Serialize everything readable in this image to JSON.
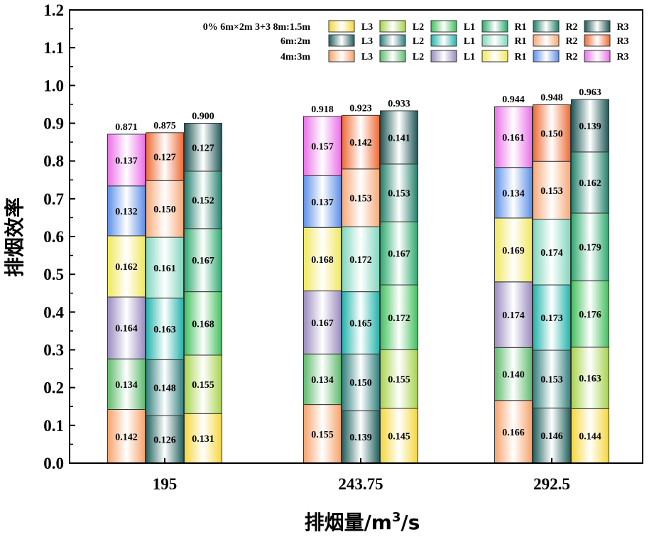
{
  "chart_data": {
    "type": "bar",
    "stacked": true,
    "title": "",
    "xlabel": "排烟量/m³/s",
    "ylabel": "排烟效率",
    "ylim": [
      0,
      1.2
    ],
    "yticks": [
      "0.0",
      "0.1",
      "0.2",
      "0.3",
      "0.4",
      "0.5",
      "0.6",
      "0.7",
      "0.8",
      "0.9",
      "1.0",
      "1.1",
      "1.2"
    ],
    "categories": [
      "195",
      "243.75",
      "292.5"
    ],
    "groups": [
      {
        "name": "4m:3m",
        "segments": [
          {
            "name": "L3",
            "color": "#f7a26a",
            "values": [
              0.142,
              0.155,
              0.166
            ]
          },
          {
            "name": "L2",
            "color": "#5dba6c",
            "values": [
              0.134,
              0.134,
              0.14
            ]
          },
          {
            "name": "L1",
            "color": "#9a8bbf",
            "values": [
              0.164,
              0.167,
              0.174
            ]
          },
          {
            "name": "R1",
            "color": "#efe75a",
            "values": [
              0.162,
              0.168,
              0.169
            ]
          },
          {
            "name": "R2",
            "color": "#5d8fe8",
            "values": [
              0.132,
              0.137,
              0.134
            ]
          },
          {
            "name": "R3",
            "color": "#ea6fe8",
            "values": [
              0.137,
              0.157,
              0.161
            ]
          }
        ],
        "totals": [
          "0.871",
          "0.918",
          "0.944"
        ]
      },
      {
        "name": "6m:2m",
        "segments": [
          {
            "name": "L3",
            "color": "#1f5f5c",
            "values": [
              0.126,
              0.139,
              0.146
            ]
          },
          {
            "name": "L2",
            "color": "#2f7f7c",
            "values": [
              0.148,
              0.15,
              0.153
            ]
          },
          {
            "name": "L1",
            "color": "#1fb3aa",
            "values": [
              0.163,
              0.165,
              0.173
            ]
          },
          {
            "name": "R1",
            "color": "#7fd6bd",
            "values": [
              0.161,
              0.172,
              0.174
            ]
          },
          {
            "name": "R2",
            "color": "#f7a877",
            "values": [
              0.15,
              0.153,
              0.153
            ]
          },
          {
            "name": "R3",
            "color": "#ee6a33",
            "values": [
              0.127,
              0.142,
              0.15
            ]
          }
        ],
        "totals": [
          "0.875",
          "0.923",
          "0.948"
        ]
      },
      {
        "name": "0% 6m×2m 3+3 8m:1.5m",
        "segments": [
          {
            "name": "L3",
            "color": "#f5d63a",
            "values": [
              0.131,
              0.145,
              0.144
            ]
          },
          {
            "name": "L2",
            "color": "#a6d24a",
            "values": [
              0.155,
              0.155,
              0.163
            ]
          },
          {
            "name": "L1",
            "color": "#3fbf5a",
            "values": [
              0.168,
              0.172,
              0.176
            ]
          },
          {
            "name": "R1",
            "color": "#2aa86c",
            "values": [
              0.167,
              0.167,
              0.179
            ]
          },
          {
            "name": "R2",
            "color": "#1f7f6a",
            "values": [
              0.152,
              0.153,
              0.162
            ]
          },
          {
            "name": "R3",
            "color": "#1f5656",
            "values": [
              0.127,
              0.141,
              0.139
            ]
          }
        ],
        "totals": [
          "0.900",
          "0.933",
          "0.963"
        ]
      }
    ],
    "legend": {
      "placement": "top-right",
      "rows": [
        {
          "label": "0% 6m×2m 3+3 8m:1.5m",
          "group": 2
        },
        {
          "label": "6m:2m",
          "group": 1
        },
        {
          "label": "4m:3m",
          "group": 0
        }
      ]
    }
  }
}
